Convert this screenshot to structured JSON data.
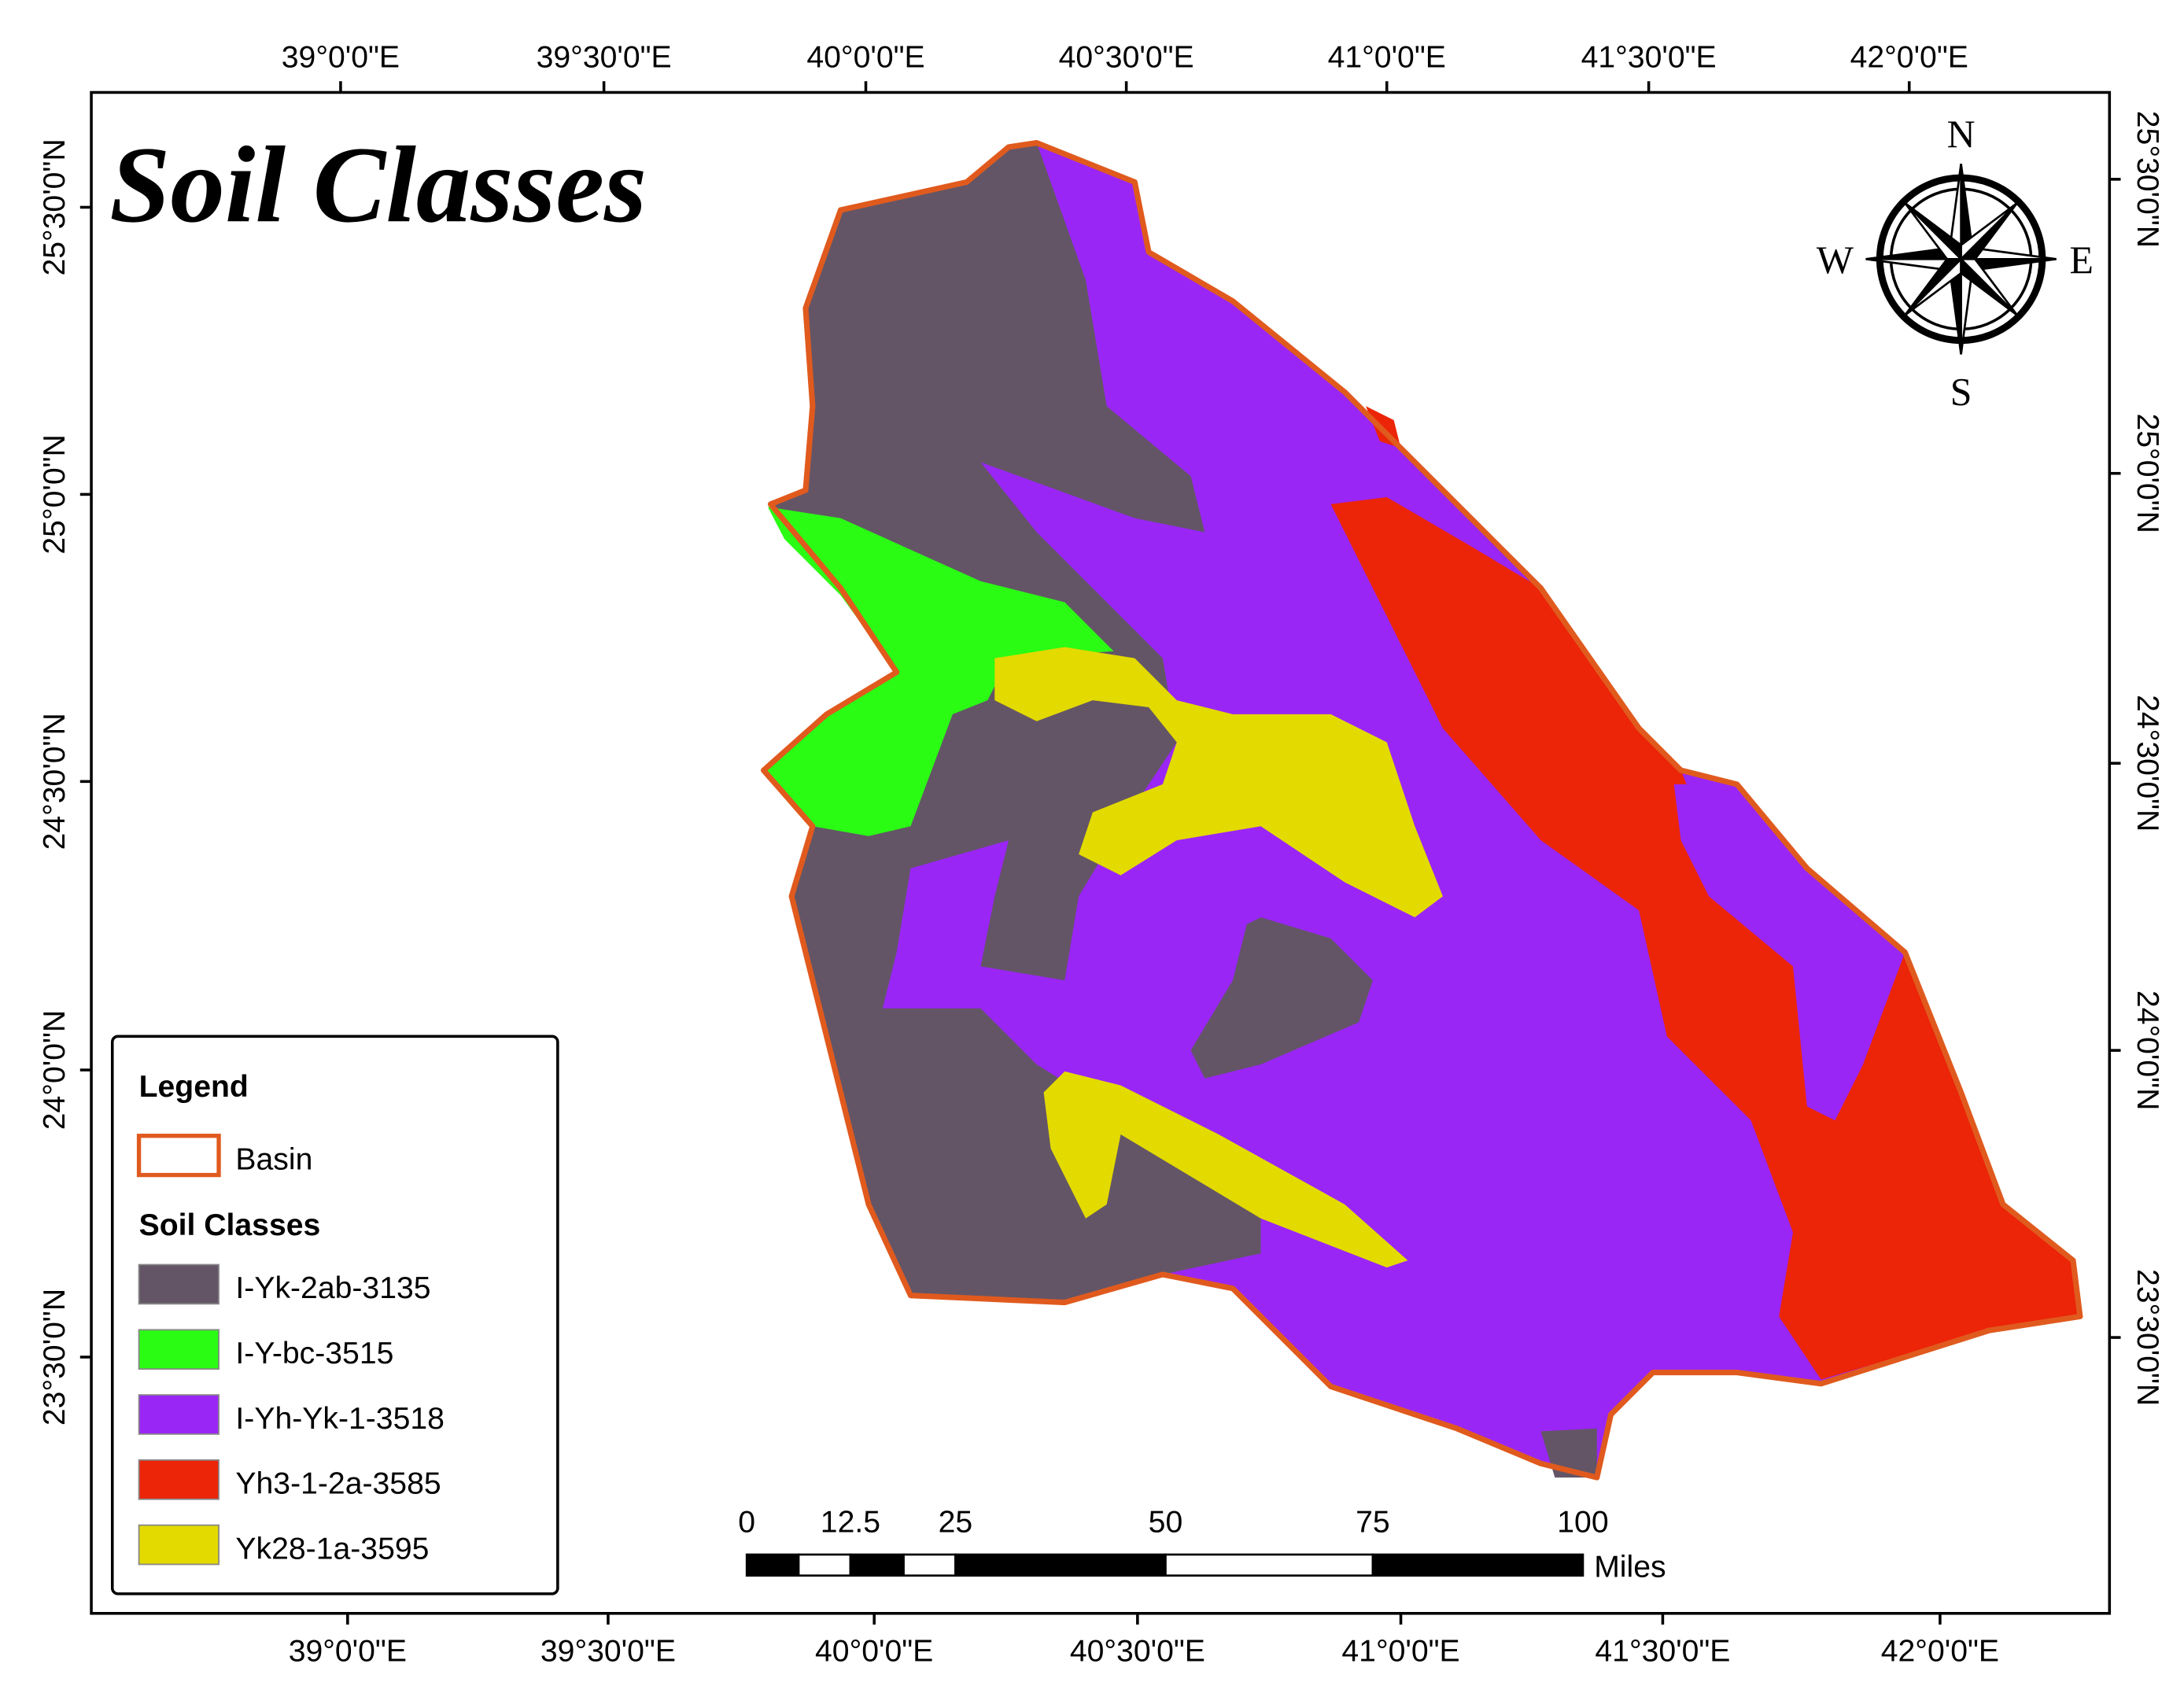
{
  "title": "Soil Classes",
  "top_labels": [
    "39°0'0\"E",
    "39°30'0\"E",
    "40°0'0\"E",
    "40°30'0\"E",
    "41°0'0\"E",
    "41°30'0\"E",
    "42°0'0\"E"
  ],
  "bottom_labels": [
    "39°0'0\"E",
    "39°30'0\"E",
    "40°0'0\"E",
    "40°30'0\"E",
    "41°0'0\"E",
    "41°30'0\"E",
    "42°0'0\"E"
  ],
  "left_labels": [
    "25°30'0\"N",
    "25°0'0\"N",
    "24°30'0\"N",
    "24°0'0\"N",
    "23°30'0\"N"
  ],
  "right_labels": [
    "25°30'0\"N",
    "25°0'0\"N",
    "24°30'0\"N",
    "24°0'0\"N",
    "23°30'0\"N"
  ],
  "compass": {
    "n": "N",
    "s": "S",
    "e": "E",
    "w": "W"
  },
  "legend": {
    "title": "Legend",
    "basin": "Basin",
    "basin_color": "#e05a1e",
    "subtitle": "Soil Classes",
    "items": [
      {
        "label": "I-Yk-2ab-3135",
        "color": "#635566"
      },
      {
        "label": "I-Y-bc-3515",
        "color": "#2afc14"
      },
      {
        "label": "I-Yh-Yk-1-3518",
        "color": "#9a26f5"
      },
      {
        "label": "Yh3-1-2a-3585",
        "color": "#ec2408"
      },
      {
        "label": "Yk28-1a-3595",
        "color": "#e3da00"
      }
    ]
  },
  "scale_bar": {
    "labels": [
      "0",
      "12.5",
      "25",
      "50",
      "75",
      "100"
    ],
    "unit": "Miles"
  }
}
